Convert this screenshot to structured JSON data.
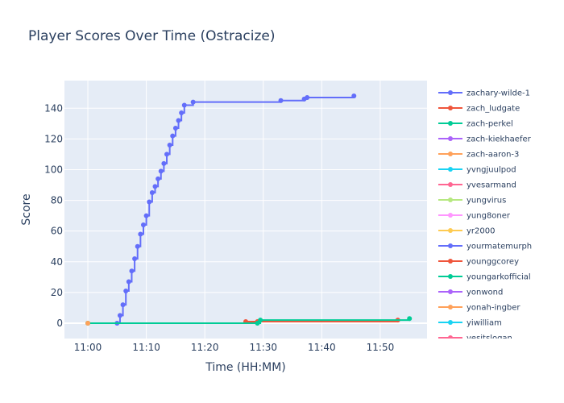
{
  "chart_data": {
    "type": "line",
    "title": "Player Scores Over Time (Ostracize)",
    "xlabel": "Time (HH:MM)",
    "ylabel": "Score",
    "x_range": [
      "10:56",
      "11:58"
    ],
    "ylim": [
      -10,
      158
    ],
    "x_ticks": [
      "11:00",
      "11:10",
      "11:20",
      "11:30",
      "11:40",
      "11:50"
    ],
    "y_ticks": [
      0,
      20,
      40,
      60,
      80,
      100,
      120,
      140
    ],
    "grid": true,
    "legend_position": "right",
    "series": [
      {
        "name": "zachary-wilde-1",
        "color": "#636efa"
      },
      {
        "name": "zach_ludgate",
        "color": "#EF553B"
      },
      {
        "name": "zach-perkel",
        "color": "#00cc96"
      },
      {
        "name": "zach-kiekhaefer",
        "color": "#ab63fa"
      },
      {
        "name": "zach-aaron-3",
        "color": "#FFA15A"
      },
      {
        "name": "yvngjuulpod",
        "color": "#19d3f3"
      },
      {
        "name": "yvesarmand",
        "color": "#FF6692"
      },
      {
        "name": "yungvirus",
        "color": "#B6E880"
      },
      {
        "name": "yung8oner",
        "color": "#FF97FF"
      },
      {
        "name": "yr2000",
        "color": "#FECB52",
        "x": [
          "11:00",
          "11:00"
        ],
        "y": [
          0,
          0
        ]
      },
      {
        "name": "yourmatemurph",
        "color": "#636efa",
        "x": [
          "11:05",
          "11:05.5",
          "11:06",
          "11:06.5",
          "11:07",
          "11:07.5",
          "11:08",
          "11:08.5",
          "11:09",
          "11:09.5",
          "11:10",
          "11:10.5",
          "11:11",
          "11:11.5",
          "11:12",
          "11:12.5",
          "11:13",
          "11:13.5",
          "11:14",
          "11:14.5",
          "11:15",
          "11:15.5",
          "11:16",
          "11:16.5",
          "11:18",
          "11:33",
          "11:37",
          "11:37.5",
          "11:45.5"
        ],
        "y": [
          0,
          5,
          12,
          21,
          27,
          34,
          42,
          50,
          58,
          64,
          70,
          79,
          85,
          89,
          94,
          99,
          104,
          110,
          116,
          122,
          127,
          132,
          137,
          142,
          144,
          145,
          146,
          147,
          148
        ]
      },
      {
        "name": "younggcorey",
        "color": "#EF553B",
        "x": [
          "11:27",
          "11:29",
          "11:53"
        ],
        "y": [
          1,
          1,
          2
        ]
      },
      {
        "name": "youngarkofficial",
        "color": "#00cc96",
        "x": [
          "11:00",
          "11:29",
          "11:29.5",
          "11:55"
        ],
        "y": [
          0,
          0,
          2,
          3
        ]
      },
      {
        "name": "yonwond",
        "color": "#ab63fa"
      },
      {
        "name": "yonah-ingber",
        "color": "#FFA15A",
        "x": [
          "11:00"
        ],
        "y": [
          0
        ]
      },
      {
        "name": "yiwilliam",
        "color": "#19d3f3"
      },
      {
        "name": "yesitslogan",
        "color": "#FF6692"
      }
    ]
  }
}
